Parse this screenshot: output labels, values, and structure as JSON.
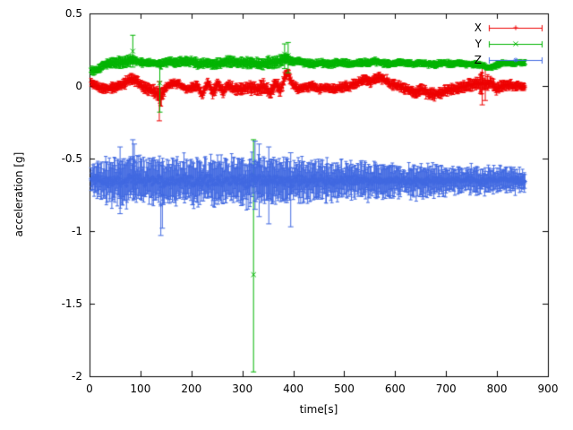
{
  "chart_data": {
    "type": "scatter",
    "style": "points-with-errorbars",
    "title": "",
    "xlabel": "time[s]",
    "ylabel": "acceleration [g]",
    "xlim": [
      0,
      900
    ],
    "ylim": [
      -2,
      0.5
    ],
    "grid": false,
    "legend": {
      "position": "top-right",
      "entries": [
        "X",
        "Y",
        "Z"
      ]
    },
    "xticks": [
      {
        "v": 0,
        "label": "0"
      },
      {
        "v": 100,
        "label": "100"
      },
      {
        "v": 200,
        "label": "200"
      },
      {
        "v": 300,
        "label": "300"
      },
      {
        "v": 400,
        "label": "400"
      },
      {
        "v": 500,
        "label": "500"
      },
      {
        "v": 600,
        "label": "600"
      },
      {
        "v": 700,
        "label": "700"
      },
      {
        "v": 800,
        "label": "800"
      },
      {
        "v": 900,
        "label": "900"
      }
    ],
    "yticks": [
      {
        "v": 0.5,
        "label": "0.5"
      },
      {
        "v": 0,
        "label": "0"
      },
      {
        "v": -0.5,
        "label": "-0.5"
      },
      {
        "v": -1,
        "label": "-1"
      },
      {
        "v": -1.5,
        "label": "-1.5"
      },
      {
        "v": -2,
        "label": "-2"
      }
    ],
    "series": [
      {
        "name": "X",
        "color": "#ee0000",
        "marker": "plus",
        "x_start": 3,
        "x_end": 856,
        "trend": [
          [
            0,
            0.04
          ],
          [
            8,
            0.01
          ],
          [
            20,
            -0.01
          ],
          [
            35,
            -0.02
          ],
          [
            55,
            0.0
          ],
          [
            70,
            0.02
          ],
          [
            82,
            0.05
          ],
          [
            95,
            0.03
          ],
          [
            105,
            -0.01
          ],
          [
            118,
            -0.02
          ],
          [
            132,
            -0.05
          ],
          [
            140,
            -0.08
          ],
          [
            148,
            -0.02
          ],
          [
            160,
            0.02
          ],
          [
            175,
            0.02
          ],
          [
            188,
            -0.02
          ],
          [
            200,
            -0.01
          ],
          [
            212,
            0.0
          ],
          [
            222,
            -0.06
          ],
          [
            232,
            0.03
          ],
          [
            242,
            -0.05
          ],
          [
            252,
            0.02
          ],
          [
            262,
            -0.04
          ],
          [
            272,
            0.01
          ],
          [
            285,
            -0.02
          ],
          [
            300,
            -0.02
          ],
          [
            315,
            -0.01
          ],
          [
            330,
            -0.02
          ],
          [
            342,
            0.0
          ],
          [
            355,
            -0.05
          ],
          [
            365,
            0.02
          ],
          [
            375,
            -0.03
          ],
          [
            383,
            0.06
          ],
          [
            390,
            0.09
          ],
          [
            397,
            0.02
          ],
          [
            408,
            -0.02
          ],
          [
            420,
            -0.01
          ],
          [
            435,
            0.0
          ],
          [
            450,
            -0.02
          ],
          [
            465,
            -0.01
          ],
          [
            480,
            -0.02
          ],
          [
            495,
            -0.01
          ],
          [
            510,
            0.0
          ],
          [
            525,
            0.02
          ],
          [
            540,
            0.05
          ],
          [
            552,
            0.03
          ],
          [
            565,
            0.06
          ],
          [
            578,
            0.05
          ],
          [
            590,
            0.02
          ],
          [
            602,
            0.0
          ],
          [
            615,
            -0.01
          ],
          [
            628,
            -0.03
          ],
          [
            640,
            -0.05
          ],
          [
            652,
            -0.02
          ],
          [
            665,
            -0.05
          ],
          [
            678,
            -0.06
          ],
          [
            690,
            -0.05
          ],
          [
            702,
            -0.03
          ],
          [
            715,
            -0.02
          ],
          [
            728,
            -0.01
          ],
          [
            740,
            0.0
          ],
          [
            752,
            0.01
          ],
          [
            765,
            0.02
          ],
          [
            778,
            0.01
          ],
          [
            788,
            0.03
          ],
          [
            798,
            -0.02
          ],
          [
            808,
            0.0
          ],
          [
            820,
            0.01
          ],
          [
            832,
            0.0
          ],
          [
            845,
            0.0
          ],
          [
            856,
            -0.01
          ]
        ],
        "noise": [
          [
            0,
            0.012
          ],
          [
            856,
            0.012
          ]
        ],
        "err": [
          [
            0,
            0.02
          ],
          [
            130,
            0.03
          ],
          [
            140,
            0.045
          ],
          [
            150,
            0.02
          ],
          [
            380,
            0.035
          ],
          [
            400,
            0.02
          ],
          [
            760,
            0.03
          ],
          [
            772,
            0.06
          ],
          [
            785,
            0.03
          ],
          [
            856,
            0.018
          ]
        ],
        "outliers": [
          {
            "x": 137,
            "y": -0.09,
            "lo": -0.24,
            "hi": 0.03
          },
          {
            "x": 771,
            "y": 0.01,
            "lo": -0.13,
            "hi": 0.14
          },
          {
            "x": 777,
            "y": 0.02,
            "lo": -0.1,
            "hi": 0.13
          }
        ]
      },
      {
        "name": "Y",
        "color": "#00b400",
        "marker": "cross",
        "x_start": 3,
        "x_end": 856,
        "trend": [
          [
            0,
            0.1
          ],
          [
            15,
            0.11
          ],
          [
            30,
            0.15
          ],
          [
            45,
            0.16
          ],
          [
            60,
            0.16
          ],
          [
            75,
            0.17
          ],
          [
            85,
            0.18
          ],
          [
            95,
            0.17
          ],
          [
            110,
            0.16
          ],
          [
            125,
            0.16
          ],
          [
            140,
            0.15
          ],
          [
            155,
            0.17
          ],
          [
            170,
            0.16
          ],
          [
            185,
            0.17
          ],
          [
            200,
            0.17
          ],
          [
            215,
            0.15
          ],
          [
            230,
            0.16
          ],
          [
            245,
            0.15
          ],
          [
            260,
            0.16
          ],
          [
            275,
            0.17
          ],
          [
            290,
            0.16
          ],
          [
            305,
            0.16
          ],
          [
            320,
            0.16
          ],
          [
            335,
            0.15
          ],
          [
            350,
            0.16
          ],
          [
            365,
            0.16
          ],
          [
            378,
            0.18
          ],
          [
            388,
            0.19
          ],
          [
            395,
            0.17
          ],
          [
            410,
            0.17
          ],
          [
            425,
            0.16
          ],
          [
            440,
            0.15
          ],
          [
            455,
            0.16
          ],
          [
            470,
            0.15
          ],
          [
            485,
            0.16
          ],
          [
            500,
            0.16
          ],
          [
            515,
            0.15
          ],
          [
            530,
            0.16
          ],
          [
            545,
            0.16
          ],
          [
            560,
            0.17
          ],
          [
            575,
            0.16
          ],
          [
            590,
            0.15
          ],
          [
            605,
            0.16
          ],
          [
            620,
            0.16
          ],
          [
            635,
            0.15
          ],
          [
            650,
            0.16
          ],
          [
            665,
            0.15
          ],
          [
            680,
            0.15
          ],
          [
            695,
            0.16
          ],
          [
            710,
            0.15
          ],
          [
            725,
            0.16
          ],
          [
            740,
            0.15
          ],
          [
            755,
            0.15
          ],
          [
            770,
            0.14
          ],
          [
            782,
            0.13
          ],
          [
            792,
            0.13
          ],
          [
            802,
            0.15
          ],
          [
            815,
            0.16
          ],
          [
            830,
            0.15
          ],
          [
            845,
            0.16
          ],
          [
            856,
            0.16
          ]
        ],
        "noise": [
          [
            0,
            0.008
          ],
          [
            856,
            0.008
          ]
        ],
        "err": [
          [
            0,
            0.02
          ],
          [
            80,
            0.03
          ],
          [
            90,
            0.02
          ],
          [
            375,
            0.03
          ],
          [
            400,
            0.02
          ],
          [
            856,
            0.015
          ]
        ],
        "outliers": [
          {
            "x": 322,
            "y": -1.3,
            "lo": -1.97,
            "hi": -0.37
          },
          {
            "x": 85,
            "y": 0.24,
            "lo": 0.13,
            "hi": 0.35
          },
          {
            "x": 138,
            "y": 0.02,
            "lo": -0.18,
            "hi": 0.17
          },
          {
            "x": 383,
            "y": 0.22,
            "lo": 0.12,
            "hi": 0.29
          },
          {
            "x": 390,
            "y": 0.21,
            "lo": 0.09,
            "hi": 0.3
          }
        ]
      },
      {
        "name": "Z",
        "color": "#4169e1",
        "marker": "star",
        "x_start": 3,
        "x_end": 856,
        "trend": [
          [
            0,
            -0.64
          ],
          [
            30,
            -0.655
          ],
          [
            60,
            -0.65
          ],
          [
            90,
            -0.645
          ],
          [
            120,
            -0.655
          ],
          [
            150,
            -0.66
          ],
          [
            180,
            -0.65
          ],
          [
            210,
            -0.655
          ],
          [
            240,
            -0.65
          ],
          [
            270,
            -0.66
          ],
          [
            300,
            -0.655
          ],
          [
            330,
            -0.645
          ],
          [
            360,
            -0.655
          ],
          [
            390,
            -0.66
          ],
          [
            420,
            -0.65
          ],
          [
            460,
            -0.655
          ],
          [
            500,
            -0.65
          ],
          [
            540,
            -0.655
          ],
          [
            580,
            -0.65
          ],
          [
            620,
            -0.65
          ],
          [
            660,
            -0.655
          ],
          [
            700,
            -0.655
          ],
          [
            740,
            -0.65
          ],
          [
            780,
            -0.65
          ],
          [
            820,
            -0.648
          ],
          [
            856,
            -0.648
          ]
        ],
        "noise": [
          [
            0,
            0.03
          ],
          [
            40,
            0.045
          ],
          [
            100,
            0.05
          ],
          [
            200,
            0.05
          ],
          [
            320,
            0.05
          ],
          [
            400,
            0.045
          ],
          [
            500,
            0.04
          ],
          [
            600,
            0.033
          ],
          [
            700,
            0.028
          ],
          [
            800,
            0.027
          ],
          [
            856,
            0.025
          ]
        ],
        "err": [
          [
            0,
            0.07
          ],
          [
            40,
            0.11
          ],
          [
            150,
            0.11
          ],
          [
            250,
            0.11
          ],
          [
            340,
            0.11
          ],
          [
            420,
            0.1
          ],
          [
            520,
            0.09
          ],
          [
            620,
            0.08
          ],
          [
            720,
            0.07
          ],
          [
            856,
            0.06
          ]
        ],
        "outliers": [
          {
            "x": 60,
            "y": -0.6,
            "lo": -0.88,
            "hi": -0.42
          },
          {
            "x": 85,
            "y": -0.5,
            "lo": -0.73,
            "hi": -0.37
          },
          {
            "x": 88,
            "y": -0.52,
            "lo": -0.78,
            "hi": -0.4
          },
          {
            "x": 140,
            "y": -0.82,
            "lo": -1.03,
            "hi": -0.62
          },
          {
            "x": 143,
            "y": -0.75,
            "lo": -0.98,
            "hi": -0.55
          },
          {
            "x": 325,
            "y": -0.52,
            "lo": -0.85,
            "hi": -0.38
          },
          {
            "x": 333,
            "y": -0.55,
            "lo": -0.9,
            "hi": -0.4
          },
          {
            "x": 352,
            "y": -0.62,
            "lo": -0.95,
            "hi": -0.42
          },
          {
            "x": 395,
            "y": -0.7,
            "lo": -0.97,
            "hi": -0.46
          }
        ]
      }
    ]
  }
}
